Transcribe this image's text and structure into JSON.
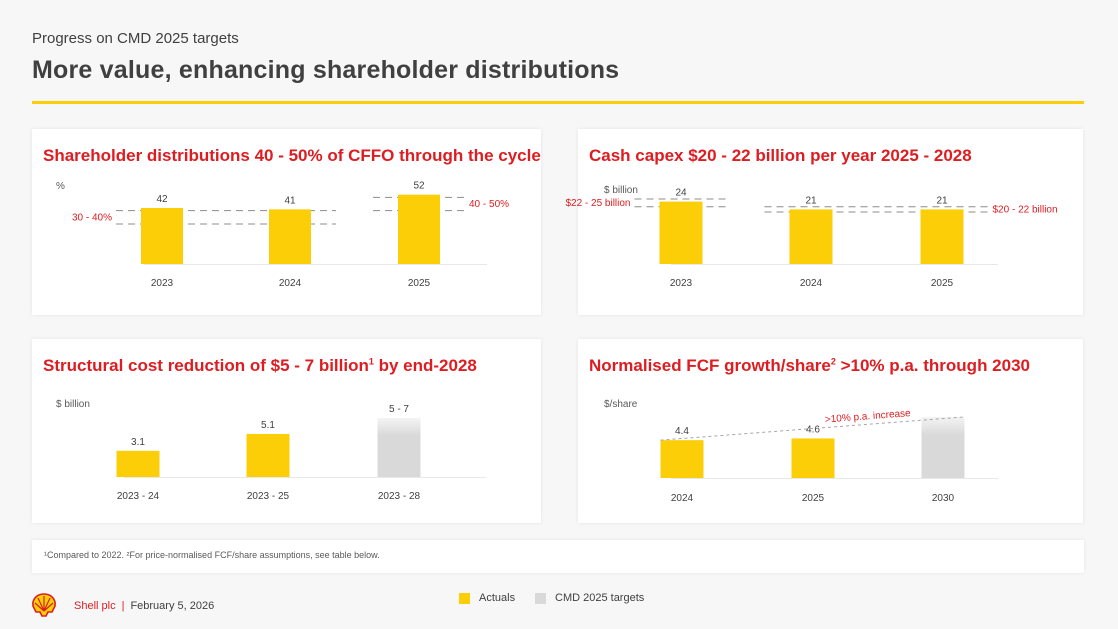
{
  "header": {
    "subtitle": "Progress on CMD 2025 targets",
    "title": "More value, enhancing shareholder distributions"
  },
  "colors": {
    "actual": "#fbce07",
    "target": "#d9d9d9",
    "accent": "#dd1d21"
  },
  "chart_data": [
    {
      "type": "bar",
      "title": "Shareholder distributions 40 - 50% of CFFO through the cycle",
      "ylabel": "%",
      "categories": [
        "2023",
        "2024",
        "2025"
      ],
      "values": [
        42,
        41,
        52
      ],
      "value_labels": [
        "42",
        "41",
        "52"
      ],
      "ylim": [
        0,
        60
      ],
      "bar_styles": [
        "actual",
        "actual",
        "actual"
      ],
      "ranges": [
        {
          "label": "30 - 40%",
          "low": 30,
          "high": 40,
          "from": 0,
          "to": 1,
          "label_side": "left"
        },
        {
          "label": "40 - 50%",
          "low": 40,
          "high": 50,
          "from": 2,
          "to": 2,
          "label_side": "right"
        }
      ]
    },
    {
      "type": "bar",
      "title": "Cash capex $20 - 22 billion per year 2025 - 2028",
      "ylabel": "$ billion",
      "categories": [
        "2023",
        "2024",
        "2025"
      ],
      "values": [
        24,
        21,
        21
      ],
      "value_labels": [
        "24",
        "21",
        "21"
      ],
      "ylim": [
        0,
        35
      ],
      "bar_styles": [
        "actual",
        "actual",
        "actual"
      ],
      "ranges": [
        {
          "label": "$22 - 25 billion",
          "low": 22,
          "high": 25,
          "from": 0,
          "to": 0,
          "label_side": "left"
        },
        {
          "label": "$20 - 22 billion",
          "low": 20,
          "high": 22,
          "from": 1,
          "to": 2,
          "label_side": "right"
        }
      ]
    },
    {
      "type": "bar",
      "title": "Structural cost reduction of $5 - 7 billion",
      "title_sup": "1",
      "title_suffix": " by end-2028",
      "ylabel": "$ billion",
      "categories": [
        "2023 - 24",
        "2023 - 25",
        "2023 - 28"
      ],
      "values": [
        3.1,
        5.1,
        7
      ],
      "value_labels": [
        "3.1",
        "5.1",
        "5 - 7"
      ],
      "ylim": [
        0,
        9
      ],
      "bar_styles": [
        "actual",
        "actual",
        "target"
      ]
    },
    {
      "type": "bar",
      "title": "Normalised FCF growth/share",
      "title_sup": "2",
      "title_suffix": " >10% p.a. through 2030",
      "ylabel": "$/share",
      "categories": [
        "2024",
        "2025",
        "2030"
      ],
      "values": [
        4.4,
        4.6,
        7.1
      ],
      "value_labels": [
        "4.4",
        "4.6",
        ""
      ],
      "ylim": [
        0,
        10
      ],
      "bar_styles": [
        "actual",
        "actual",
        "target"
      ],
      "trend_label": ">10% p.a. increase"
    }
  ],
  "footnote": "¹Compared to 2022. ²For price-normalised FCF/share assumptions, see table below.",
  "footer": {
    "brand": "Shell plc",
    "date": "February 5, 2026"
  },
  "legend": {
    "actuals": "Actuals",
    "targets": "CMD 2025 targets"
  }
}
